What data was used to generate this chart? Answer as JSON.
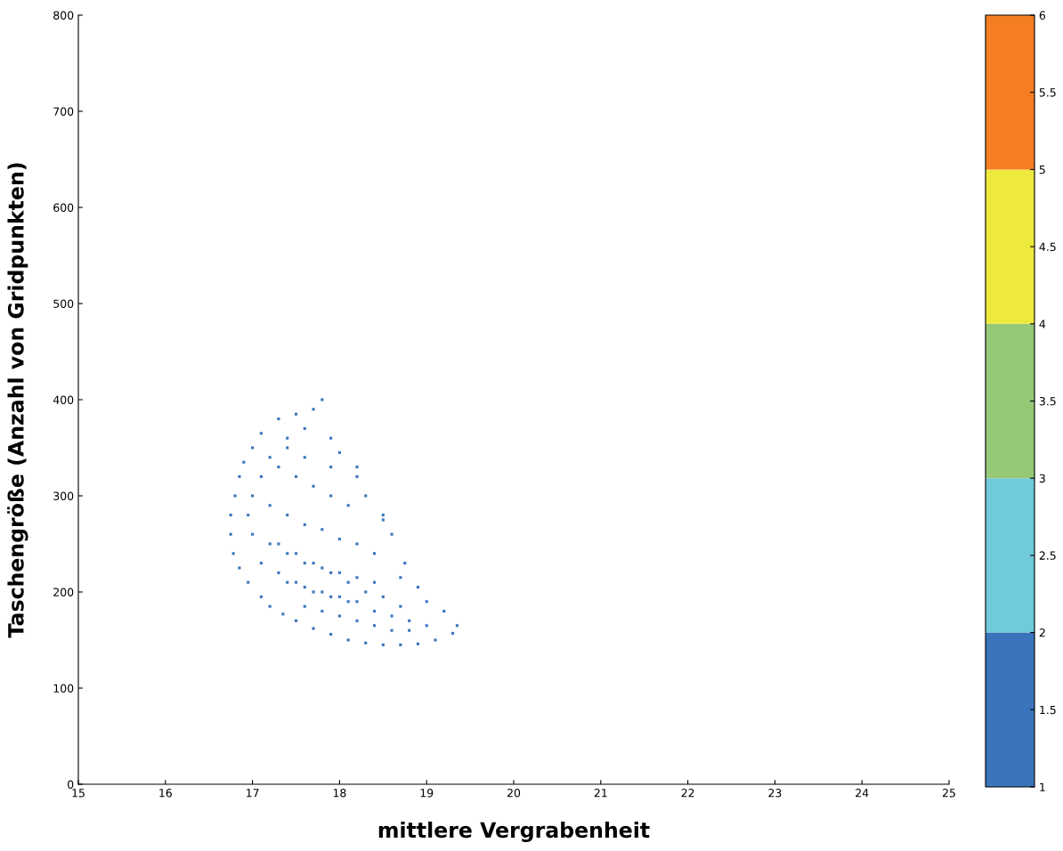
{
  "chart_data": {
    "type": "scatter",
    "xlabel": "mittlere Vergrabenheit",
    "ylabel": "Taschengröße (Anzahl von Gridpunkten)",
    "xlim": [
      15,
      25
    ],
    "xticks": [
      15,
      16,
      17,
      18,
      19,
      20,
      21,
      22,
      23,
      24,
      25
    ],
    "ylim": [
      0,
      800
    ],
    "yticks": [
      0,
      100,
      200,
      300,
      400,
      500,
      600,
      700,
      800
    ],
    "clim": [
      1,
      6
    ],
    "cticks": [
      1,
      1.5,
      2,
      2.5,
      3,
      3.5,
      4,
      4.5,
      5,
      5.5,
      6
    ],
    "grid": false,
    "marker": "square",
    "series": [
      {
        "color": "#3a75bc",
        "x": [
          17.8,
          17.7,
          17.5,
          17.3,
          17.1,
          17.0,
          16.9,
          16.85,
          16.8,
          16.75,
          16.75,
          16.78,
          16.85,
          16.95,
          17.1,
          17.2,
          17.35,
          17.5,
          17.7,
          17.9,
          18.1,
          18.3,
          18.5,
          18.7,
          18.9,
          19.1,
          19.3,
          19.35,
          19.2,
          19.0,
          18.9,
          18.75,
          18.6,
          18.5,
          18.3,
          18.2,
          18.0,
          17.9,
          17.6,
          17.4,
          17.2,
          17.1,
          17.0,
          16.95,
          17.3,
          17.5,
          17.7,
          17.9,
          18.1,
          17.2,
          17.4,
          17.6,
          17.8,
          18.0,
          18.2,
          18.4,
          17.3,
          17.5,
          17.7,
          17.9,
          18.1,
          18.3,
          18.5,
          18.7,
          17.4,
          17.6,
          17.8,
          18.0,
          18.2,
          18.4,
          18.6,
          18.8,
          19.0,
          17.6,
          17.8,
          18.0,
          18.2,
          18.4,
          18.6,
          18.8,
          17.1,
          17.3,
          17.5,
          17.7,
          17.9,
          18.1,
          17.0,
          17.2,
          17.4,
          17.6,
          17.8,
          18.0,
          18.2,
          18.4,
          17.4,
          17.6,
          17.9,
          18.2,
          18.5,
          18.7
        ],
        "values": [
          400,
          390,
          385,
          380,
          365,
          350,
          335,
          320,
          300,
          280,
          260,
          240,
          225,
          210,
          195,
          185,
          177,
          170,
          162,
          156,
          150,
          147,
          145,
          145,
          146,
          150,
          157,
          165,
          180,
          190,
          205,
          230,
          260,
          280,
          300,
          330,
          345,
          360,
          370,
          360,
          340,
          320,
          300,
          280,
          330,
          320,
          310,
          300,
          290,
          290,
          280,
          270,
          265,
          255,
          250,
          240,
          250,
          240,
          230,
          220,
          210,
          200,
          195,
          185,
          210,
          205,
          200,
          195,
          190,
          180,
          175,
          170,
          165,
          185,
          180,
          175,
          170,
          165,
          160,
          160,
          230,
          220,
          210,
          200,
          195,
          190,
          260,
          250,
          240,
          230,
          225,
          220,
          215,
          210,
          350,
          340,
          330,
          320,
          275,
          215
        ]
      }
    ]
  }
}
